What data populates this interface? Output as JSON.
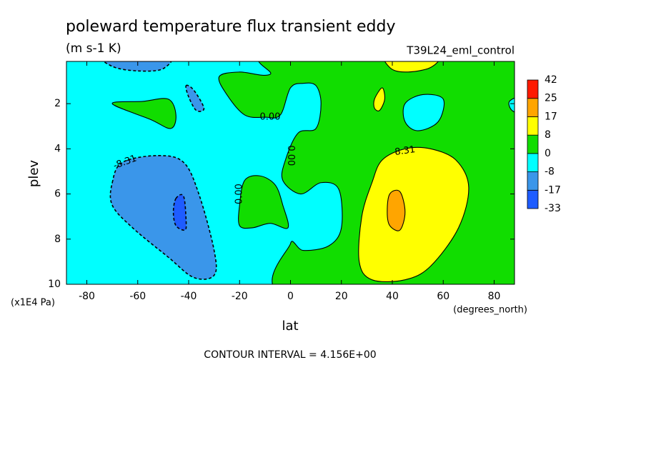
{
  "chart_data": {
    "type": "contour",
    "title": "poleward temperature flux transient eddy",
    "subtitle": "(m s-1 K)",
    "dataset": "T39L24_eml_control",
    "xlabel": "lat",
    "ylabel": "plev",
    "x_units": "(degrees_north)",
    "y_units": "(x1E4 Pa)",
    "footer": "CONTOUR INTERVAL = 4.156E+00",
    "xlim": [
      -88,
      88
    ],
    "ylim": [
      10,
      0.13
    ],
    "xticks": [
      -80,
      -60,
      -40,
      -20,
      0,
      20,
      40,
      60,
      80
    ],
    "yticks": [
      2,
      4,
      6,
      8,
      10
    ],
    "levels": [
      -33,
      -17,
      -8,
      0,
      8,
      17,
      25,
      42
    ],
    "colors": [
      "#1e5cff",
      "#3a96ea",
      "#00ffff",
      "#11dd00",
      "#ffff00",
      "#ffa500",
      "#ff1a00"
    ],
    "contour_labels": [
      "0.00",
      "0.00",
      "0.00",
      "-8.31",
      "8.31"
    ],
    "regions": [
      {
        "value": -8,
        "points": [
          [
            -95,
            -1
          ],
          [
            95,
            -1
          ],
          [
            95,
            11
          ],
          [
            -95,
            11
          ]
        ]
      },
      {
        "value": 0,
        "points": [
          [
            0,
            10.6
          ],
          [
            0,
            8.2
          ],
          [
            5,
            8.5
          ],
          [
            15,
            8.3
          ],
          [
            20,
            7.5
          ],
          [
            19,
            5.8
          ],
          [
            12,
            5.5
          ],
          [
            4,
            6
          ],
          [
            -3,
            5.4
          ],
          [
            -2,
            4.5
          ],
          [
            3,
            3.3
          ],
          [
            10,
            3.1
          ],
          [
            12,
            2
          ],
          [
            10,
            1.2
          ],
          [
            5,
            1.1
          ],
          [
            0,
            1.3
          ],
          [
            -4,
            2.5
          ],
          [
            -10,
            2.6
          ],
          [
            -18,
            2.5
          ],
          [
            -25,
            1.6
          ],
          [
            -28,
            0.8
          ],
          [
            -20,
            0.6
          ],
          [
            -8,
            0.7
          ],
          [
            -5,
            -0.3
          ],
          [
            95,
            -0.3
          ],
          [
            95,
            10.6
          ]
        ]
      },
      {
        "value": -8,
        "points": [
          [
            45,
            2
          ],
          [
            52,
            1.6
          ],
          [
            60,
            1.8
          ],
          [
            58,
            2.8
          ],
          [
            50,
            3.2
          ],
          [
            45,
            2.8
          ]
        ]
      },
      {
        "value": -8,
        "points": [
          [
            86,
            1.9
          ],
          [
            91,
            1.7
          ],
          [
            91,
            2.4
          ],
          [
            87,
            2.3
          ]
        ]
      },
      {
        "value": 0,
        "points": [
          [
            -70,
            2.0
          ],
          [
            -58,
            1.9
          ],
          [
            -48,
            1.8
          ],
          [
            -45,
            2.5
          ],
          [
            -47,
            3.1
          ],
          [
            -55,
            2.7
          ]
        ]
      },
      {
        "value": 0,
        "points": [
          [
            -20,
            6.5
          ],
          [
            -18,
            5.4
          ],
          [
            -12,
            5.2
          ],
          [
            -6,
            5.6
          ],
          [
            -3,
            6.5
          ],
          [
            -1,
            7.5
          ],
          [
            -8,
            7.3
          ],
          [
            -15,
            7.5
          ],
          [
            -20,
            7.4
          ]
        ]
      },
      {
        "value": -17,
        "points": [
          [
            -70,
            5.5
          ],
          [
            -66,
            4.6
          ],
          [
            -52,
            4.3
          ],
          [
            -42,
            4.6
          ],
          [
            -36,
            6
          ],
          [
            -30,
            8.5
          ],
          [
            -30,
            9.6
          ],
          [
            -38,
            9.7
          ],
          [
            -48,
            8.8
          ],
          [
            -62,
            7.5
          ],
          [
            -70,
            6.5
          ]
        ]
      },
      {
        "value": -33,
        "points": [
          [
            -45,
            6.2
          ],
          [
            -42,
            6.1
          ],
          [
            -41,
            7.2
          ],
          [
            -41.5,
            7.6
          ],
          [
            -45,
            7.4
          ],
          [
            -46,
            6.8
          ]
        ]
      },
      {
        "value": -17,
        "points": [
          [
            -74,
            -0.2
          ],
          [
            -48,
            -0.2
          ],
          [
            -50,
            0.45
          ],
          [
            -60,
            0.55
          ],
          [
            -70,
            0.35
          ]
        ]
      },
      {
        "value": -17,
        "points": [
          [
            -41,
            1.2
          ],
          [
            -38,
            1.4
          ],
          [
            -34,
            2.2
          ],
          [
            -37,
            2.3
          ],
          [
            -40,
            1.7
          ]
        ]
      },
      {
        "value": 8,
        "points": [
          [
            32,
            5.5
          ],
          [
            36,
            4.5
          ],
          [
            45,
            4.0
          ],
          [
            55,
            4.0
          ],
          [
            65,
            4.5
          ],
          [
            70,
            5.7
          ],
          [
            66,
            7.5
          ],
          [
            55,
            9.2
          ],
          [
            45,
            9.8
          ],
          [
            32,
            9.8
          ],
          [
            27,
            9
          ],
          [
            28,
            7
          ]
        ]
      },
      {
        "value": 17,
        "points": [
          [
            39,
            6.0
          ],
          [
            43,
            5.9
          ],
          [
            45,
            6.8
          ],
          [
            43,
            7.6
          ],
          [
            39,
            7.4
          ],
          [
            38,
            6.8
          ]
        ]
      },
      {
        "value": 8,
        "points": [
          [
            38,
            -0.2
          ],
          [
            58,
            -0.2
          ],
          [
            55,
            0.4
          ],
          [
            45,
            0.6
          ],
          [
            39,
            0.4
          ]
        ]
      },
      {
        "value": 8,
        "points": [
          [
            33,
            1.8
          ],
          [
            36,
            1.3
          ],
          [
            37,
            1.8
          ],
          [
            35,
            2.3
          ],
          [
            33,
            2.2
          ]
        ]
      }
    ]
  }
}
